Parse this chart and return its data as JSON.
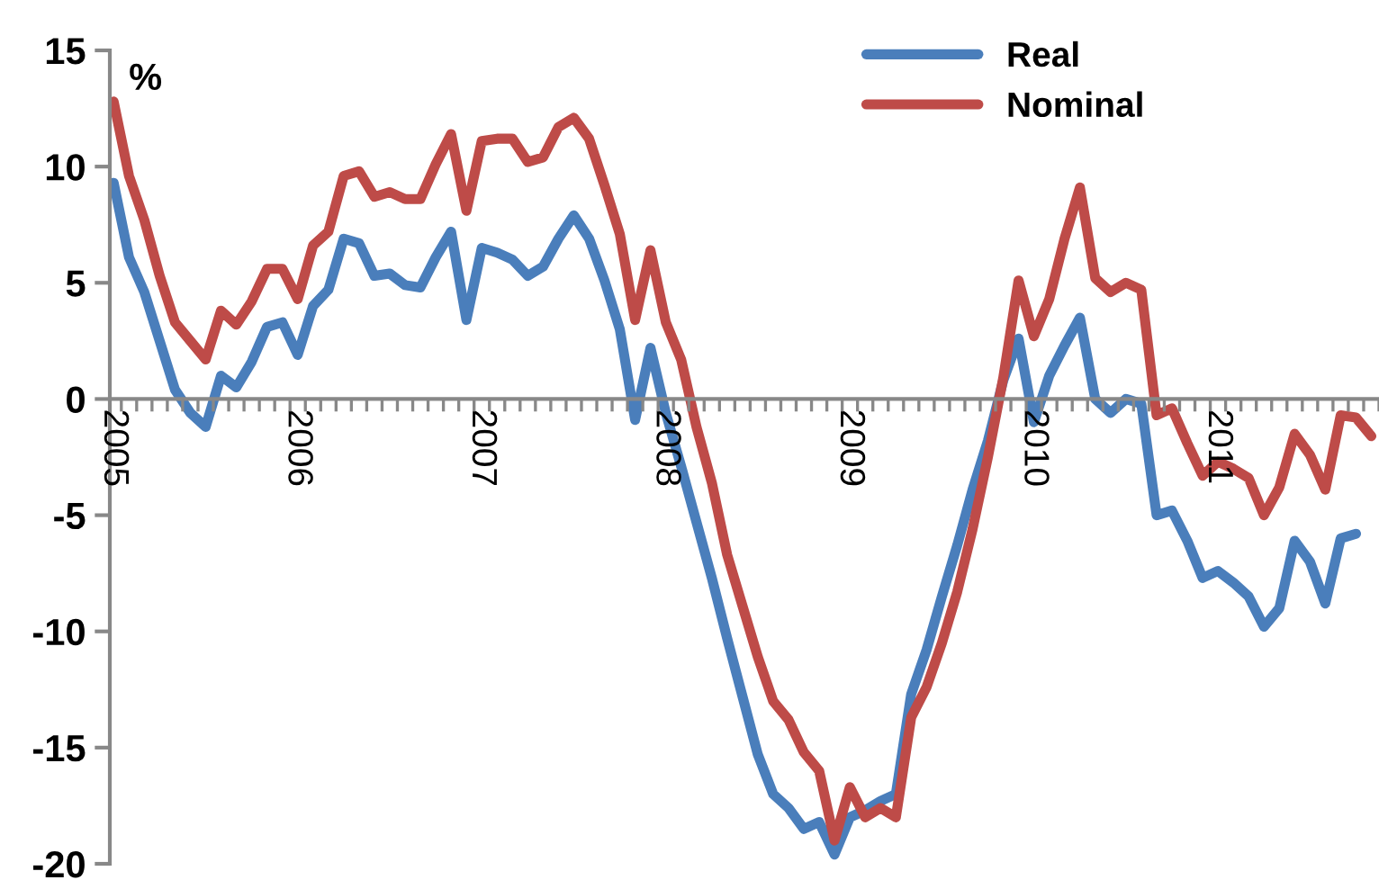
{
  "chart_data": {
    "type": "line",
    "ylabel": "%",
    "categories": [
      "2005",
      null,
      null,
      null,
      null,
      null,
      null,
      null,
      null,
      null,
      null,
      null,
      "2006",
      null,
      null,
      null,
      null,
      null,
      null,
      null,
      null,
      null,
      null,
      null,
      "2007",
      null,
      null,
      null,
      null,
      null,
      null,
      null,
      null,
      null,
      null,
      null,
      "2008",
      null,
      null,
      null,
      null,
      null,
      null,
      null,
      null,
      null,
      null,
      null,
      "2009",
      null,
      null,
      null,
      null,
      null,
      null,
      null,
      null,
      null,
      null,
      null,
      "2010",
      null,
      null,
      null,
      null,
      null,
      null,
      null,
      null,
      null,
      null,
      null,
      "2011",
      null,
      null,
      null,
      null,
      null,
      null,
      null,
      null,
      null,
      null
    ],
    "series": [
      {
        "name": "Real",
        "color": "#4a7ebb",
        "values": [
          9.3,
          6.1,
          4.6,
          2.5,
          0.4,
          -0.6,
          -1.2,
          1.0,
          0.5,
          1.6,
          3.1,
          3.3,
          1.9,
          4.0,
          4.7,
          6.9,
          6.7,
          5.3,
          5.4,
          4.9,
          4.8,
          6.1,
          7.2,
          3.4,
          6.5,
          6.3,
          6.0,
          5.3,
          5.7,
          6.9,
          7.9,
          6.9,
          5.1,
          3.0,
          -0.9,
          2.2,
          -0.6,
          -2.9,
          -5.3,
          -7.7,
          -10.3,
          -12.8,
          -15.3,
          -17.0,
          -17.6,
          -18.5,
          -18.2,
          -19.6,
          -18.0,
          -17.7,
          -17.3,
          -17.0,
          -12.7,
          -10.8,
          -8.5,
          -6.3,
          -3.9,
          -1.8,
          0.8,
          2.6,
          -1.0,
          1.0,
          2.3,
          3.5,
          0.0,
          -0.6,
          0.0,
          -0.2,
          -5.0,
          -4.8,
          -6.1,
          -7.7,
          -7.4,
          -7.9,
          -8.5,
          -9.8,
          -9.0,
          -6.1,
          -7.0,
          -8.8,
          -6.0,
          -5.8,
          null
        ]
      },
      {
        "name": "Nominal",
        "color": "#be4b48",
        "values": [
          12.8,
          9.6,
          7.7,
          5.3,
          3.3,
          2.5,
          1.7,
          3.8,
          3.2,
          4.2,
          5.6,
          5.6,
          4.3,
          6.6,
          7.2,
          9.6,
          9.8,
          8.7,
          8.9,
          8.6,
          8.6,
          10.1,
          11.4,
          8.1,
          11.1,
          11.2,
          11.2,
          10.2,
          10.4,
          11.7,
          12.1,
          11.2,
          9.2,
          7.1,
          3.4,
          6.4,
          3.3,
          1.7,
          -1.2,
          -3.6,
          -6.7,
          -8.9,
          -11.1,
          -13.0,
          -13.8,
          -15.2,
          -16.0,
          -19.0,
          -16.7,
          -18.0,
          -17.6,
          -18.0,
          -13.7,
          -12.4,
          -10.5,
          -8.3,
          -5.6,
          -2.5,
          0.9,
          5.1,
          2.7,
          4.3,
          6.9,
          9.1,
          5.2,
          4.6,
          5.0,
          4.7,
          -0.7,
          -0.4,
          -1.9,
          -3.3,
          -2.7,
          -3.0,
          -3.4,
          -5.0,
          -3.8,
          -1.5,
          -2.4,
          -3.9,
          -0.7,
          -0.8,
          -1.6
        ]
      }
    ],
    "ylim": [
      -20,
      15
    ],
    "yticks": [
      -20,
      -15,
      -10,
      -5,
      0,
      5,
      10,
      15
    ],
    "legend": "top right",
    "grid": false,
    "marker": "none",
    "line_style": "solid"
  }
}
